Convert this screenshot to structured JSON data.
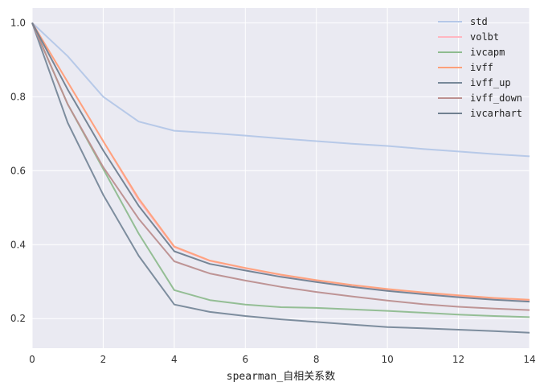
{
  "chart_data": {
    "type": "line",
    "title": "",
    "xlabel": "spearman_自相关系数",
    "ylabel": "",
    "xlim": [
      0,
      14
    ],
    "ylim": [
      0.12,
      1.04
    ],
    "x_ticks": [
      0,
      2,
      4,
      6,
      8,
      10,
      12,
      14
    ],
    "y_ticks": [
      0.2,
      0.4,
      0.6,
      0.8,
      1.0
    ],
    "x_tick_labels": [
      "0",
      "2",
      "4",
      "6",
      "8",
      "10",
      "12",
      "14"
    ],
    "y_tick_labels": [
      "0.2",
      "0.4",
      "0.6",
      "0.8",
      "1.0"
    ],
    "grid": true,
    "legend_position": "top-right",
    "x": [
      0,
      1,
      2,
      3,
      4,
      5,
      6,
      7,
      8,
      9,
      10,
      11,
      12,
      13,
      14
    ],
    "series": [
      {
        "name": "std",
        "color": "#b4c7e7",
        "values": [
          1.0,
          0.91,
          0.8,
          0.733,
          0.708,
          0.702,
          0.695,
          0.687,
          0.68,
          0.673,
          0.667,
          0.659,
          0.652,
          0.645,
          0.639
        ]
      },
      {
        "name": "volbt",
        "color": "#ffb6c1",
        "values": [
          1.0,
          0.84,
          0.68,
          0.52,
          0.393,
          0.356,
          0.336,
          0.318,
          0.303,
          0.29,
          0.279,
          0.27,
          0.262,
          0.255,
          0.25
        ]
      },
      {
        "name": "ivcapm",
        "color": "#8fbc8f",
        "values": [
          1.0,
          0.78,
          0.605,
          0.43,
          0.277,
          0.25,
          0.238,
          0.231,
          0.229,
          0.225,
          0.221,
          0.216,
          0.211,
          0.207,
          0.204
        ]
      },
      {
        "name": "ivff",
        "color": "#ffa07a",
        "values": [
          1.0,
          0.84,
          0.68,
          0.525,
          0.395,
          0.357,
          0.337,
          0.319,
          0.304,
          0.291,
          0.28,
          0.271,
          0.263,
          0.256,
          0.251
        ]
      },
      {
        "name": "ivff_up",
        "color": "#778899",
        "values": [
          1.0,
          0.73,
          0.535,
          0.37,
          0.238,
          0.218,
          0.207,
          0.198,
          0.191,
          0.184,
          0.177,
          0.174,
          0.17,
          0.166,
          0.162
        ]
      },
      {
        "name": "ivff_down",
        "color": "#bc8f8f",
        "values": [
          1.0,
          0.78,
          0.61,
          0.47,
          0.355,
          0.322,
          0.303,
          0.286,
          0.272,
          0.26,
          0.249,
          0.239,
          0.232,
          0.227,
          0.223
        ]
      },
      {
        "name": "ivcarhart",
        "color": "#708090",
        "values": [
          1.0,
          0.82,
          0.655,
          0.505,
          0.382,
          0.348,
          0.33,
          0.313,
          0.299,
          0.286,
          0.275,
          0.266,
          0.258,
          0.251,
          0.246
        ]
      }
    ]
  }
}
